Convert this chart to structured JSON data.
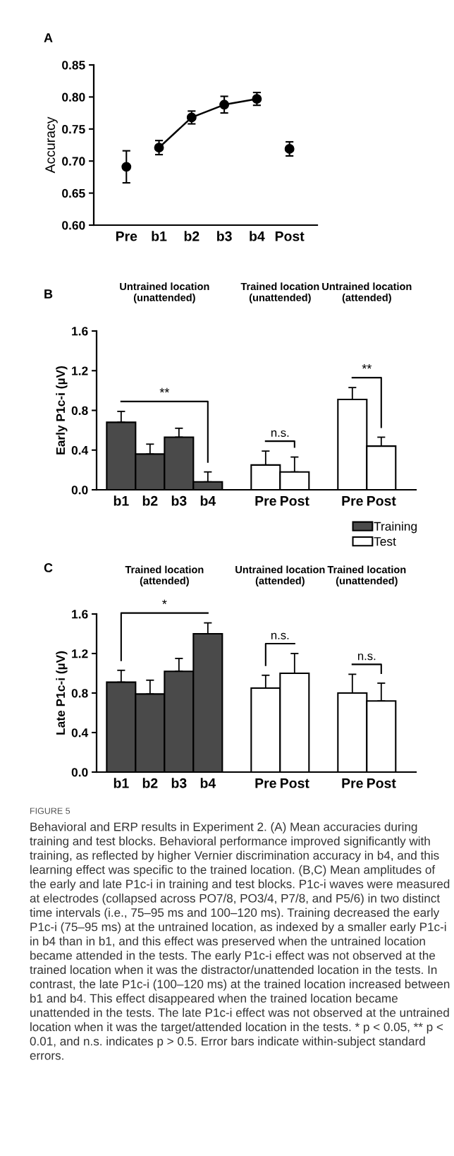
{
  "chart_data": [
    {
      "type": "line",
      "title": "A",
      "ylabel": "Accuracy",
      "categories": [
        "Pre",
        "b1",
        "b2",
        "b3",
        "b4",
        "Post"
      ],
      "series": [
        {
          "type": "scatter",
          "color": "#000000",
          "values": [
            0.691,
            null,
            null,
            null,
            null,
            0.719
          ],
          "errors": [
            0.025,
            null,
            null,
            null,
            null,
            0.011
          ]
        },
        {
          "type": "line",
          "color": "#000000",
          "values": [
            null,
            0.721,
            0.768,
            0.788,
            0.797,
            null
          ],
          "errors": [
            null,
            0.011,
            0.01,
            0.013,
            0.01,
            null
          ]
        }
      ],
      "ylim": [
        0.6,
        0.85
      ],
      "yticks": [
        {
          "value": 0.6,
          "label": "0.60"
        },
        {
          "value": 0.65,
          "label": "0.65"
        },
        {
          "value": 0.7,
          "label": "0.70"
        },
        {
          "value": 0.75,
          "label": "0.75"
        },
        {
          "value": 0.8,
          "label": "0.80"
        },
        {
          "value": 0.85,
          "label": "0.85"
        }
      ],
      "marker": "circle",
      "line_style": "solid",
      "grid": false,
      "legend": false
    },
    {
      "type": "bar",
      "title": "B",
      "ylabel": "Early P1c-i (µV)",
      "categories": [
        "b1",
        "b2",
        "b3",
        "b4",
        null,
        "Pre",
        "Post",
        null,
        "Pre",
        "Post"
      ],
      "series": [
        {
          "name": "Training",
          "color": "#4a4a4a",
          "values": [
            0.68,
            0.36,
            0.53,
            0.08,
            null,
            null,
            null,
            null,
            null,
            null
          ],
          "errors": [
            [
              0.68,
              0.79
            ],
            [
              0.36,
              0.46
            ],
            [
              0.53,
              0.62
            ],
            [
              0.08,
              0.18
            ],
            null,
            null,
            null,
            null,
            null,
            null
          ]
        },
        {
          "name": "Test",
          "color": "#ffffff",
          "values": [
            null,
            null,
            null,
            null,
            null,
            0.25,
            0.18,
            null,
            0.91,
            0.44
          ],
          "errors": [
            null,
            null,
            null,
            null,
            null,
            [
              0.25,
              0.39
            ],
            [
              0.18,
              0.33
            ],
            null,
            [
              0.91,
              1.03
            ],
            [
              0.44,
              0.53
            ]
          ]
        }
      ],
      "ylim": [
        0,
        1.6
      ],
      "yticks": [
        {
          "value": 0,
          "label": "0.0"
        },
        {
          "value": 0.4,
          "label": "0.4"
        },
        {
          "value": 0.8,
          "label": "0.8"
        },
        {
          "value": 1.2,
          "label": "1.2"
        },
        {
          "value": 1.6,
          "label": "1.6"
        }
      ],
      "annotations": [
        "Untrained location\n(unattended)",
        "Trained location\n(unattended)",
        "Untrained location\n(attended)",
        "**",
        "n.s.",
        "**"
      ],
      "grid": false,
      "legend": "bottom right"
    },
    {
      "type": "bar",
      "title": "C",
      "ylabel": "Late P1c-i (µV)",
      "categories": [
        "b1",
        "b2",
        "b3",
        "b4",
        null,
        "Pre",
        "Post",
        null,
        "Pre",
        "Post"
      ],
      "series": [
        {
          "color": "#4a4a4a",
          "values": [
            0.91,
            0.79,
            1.02,
            1.4,
            null,
            null,
            null,
            null,
            null,
            null
          ],
          "errors": [
            [
              0.91,
              1.03
            ],
            [
              0.79,
              0.93
            ],
            [
              1.02,
              1.15
            ],
            [
              1.4,
              1.51
            ],
            null,
            null,
            null,
            null,
            null,
            null
          ]
        },
        {
          "color": "#ffffff",
          "values": [
            null,
            null,
            null,
            null,
            null,
            0.85,
            1.0,
            null,
            0.8,
            0.72
          ],
          "errors": [
            null,
            null,
            null,
            null,
            null,
            [
              0.85,
              0.98
            ],
            [
              1.0,
              1.2
            ],
            null,
            [
              0.8,
              0.99
            ],
            [
              0.72,
              0.9
            ]
          ]
        }
      ],
      "ylim": [
        0,
        1.6
      ],
      "yticks": [
        {
          "value": 0,
          "label": "0.0"
        },
        {
          "value": 0.4,
          "label": "0.4"
        },
        {
          "value": 0.8,
          "label": "0.8"
        },
        {
          "value": 1.2,
          "label": "1.2"
        },
        {
          "value": 1.6,
          "label": "1.6"
        }
      ],
      "annotations": [
        "Trained location\n(attended)",
        "Untrained location\n(attended)",
        "Trained location\n(unattended)",
        "*",
        "n.s.",
        "n.s.",
        "FIGURE 5",
        "Behavioral and ERP results in Experiment 2. (A) Mean accuracies during training and test blocks. Behavioral performance improved significantly with training, as reflected by higher Vernier discrimination accuracy in b4, and this learning effect was specific to the trained location. (B,C) Mean amplitudes of the early and late P1c-i in training and test blocks. P1c-i waves were measured at electrodes (collapsed across PO7/8, PO3/4, P7/8, and P5/6) in two distinct time intervals (i.e., 75–95 ms and 100–120 ms). Training decreased the early P1c-i (75–95 ms) at the untrained location, as indexed by a smaller early P1c-i in b4 than in b1, and this effect was preserved when the untrained location became attended in the tests. The early P1c-i effect was not observed at the trained location when it was the distractor/unattended location in the tests. In contrast, the late P1c-i (100–120 ms) at the trained location increased between b1 and b4. This effect disappeared when the trained location became unattended in the tests. The late P1c-i effect was not observed at the untrained location when it was the target/attended location in the tests. * p < 0.05, ** p < 0.01, and n.s. indicates p > 0.5. Error bars indicate within-subject standard errors."
      ],
      "grid": false,
      "legend": false
    }
  ]
}
